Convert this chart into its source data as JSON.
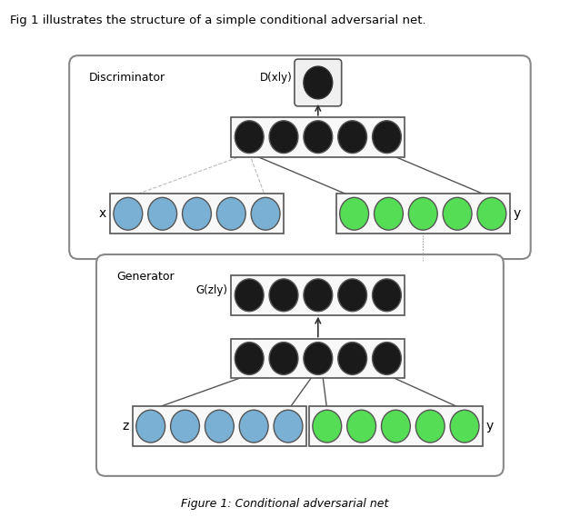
{
  "title_text": "Fig 1 illustrates the structure of a simple conditional adversarial net.",
  "caption_text": "Figure 1: Conditional adversarial net",
  "background_color": "#ffffff",
  "dark_node_color": "#1a1a1a",
  "blue_node_color": "#7ab0d4",
  "green_node_color": "#55dd55",
  "discriminator_label": "Discriminator",
  "generator_label": "Generator",
  "d_output_label": "D(xly)",
  "g_output_label": "G(zly)",
  "x_label": "x",
  "y_label_disc": "y",
  "z_label": "z",
  "y_label_gen": "y"
}
